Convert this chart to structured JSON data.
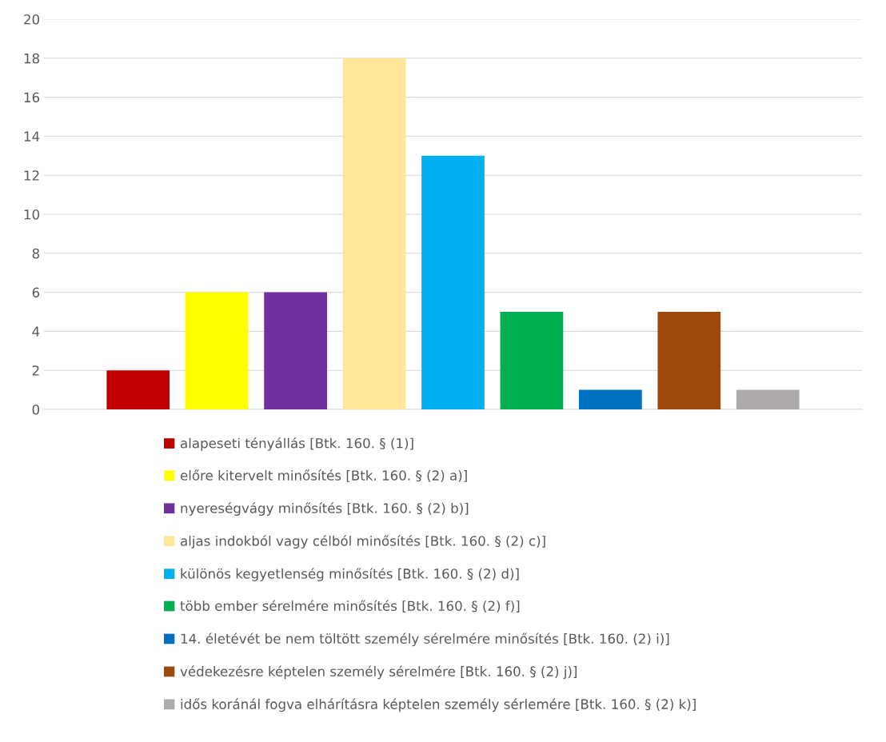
{
  "chart_data": {
    "type": "bar",
    "categories": [
      null
    ],
    "series": [
      {
        "name": "alapeseti tényállás [Btk. 160. § (1)]",
        "color": "#c00000",
        "values": [
          2
        ]
      },
      {
        "name": "előre kitervelt minősítés [Btk. 160. § (2) a)]",
        "color": "#ffff00",
        "values": [
          6
        ]
      },
      {
        "name": "nyereségvágy minősítés [Btk. 160. § (2) b)]",
        "color": "#7030a0",
        "values": [
          6
        ]
      },
      {
        "name": "aljas indokból vagy célból minősítés [Btk. 160. § (2) c)]",
        "color": "#ffe699",
        "values": [
          18
        ]
      },
      {
        "name": "különös kegyetlenség minősítés [Btk. 160. § (2) d)]",
        "color": "#00b0f0",
        "values": [
          13
        ]
      },
      {
        "name": "több ember sérelmére minősítés [Btk. 160. § (2) f)]",
        "color": "#00b050",
        "values": [
          5
        ]
      },
      {
        "name": "14. életévét be nem töltött személy sérelmére minősítés [Btk. 160. (2) i)]",
        "color": "#0070c0",
        "values": [
          1
        ]
      },
      {
        "name": "védekezésre képtelen személy sérelmére [Btk. 160. § (2) j)]",
        "color": "#9e480e",
        "values": [
          5
        ]
      },
      {
        "name": "idős koránál fogva elhárításra képtelen személy sérlemére [Btk. 160. § (2) k)]",
        "color": "#aeaaaa",
        "values": [
          1
        ]
      }
    ],
    "ylim": [
      0,
      20
    ],
    "yticks": [
      0,
      2,
      4,
      6,
      8,
      10,
      12,
      14,
      16,
      18,
      20
    ],
    "grid": "y",
    "legend": "bottom"
  }
}
